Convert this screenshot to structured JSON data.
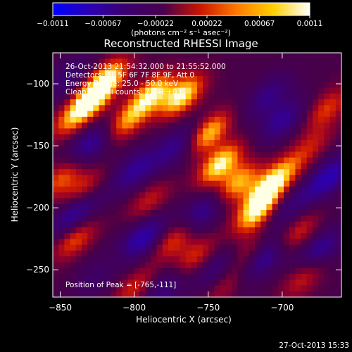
{
  "chart_data": {
    "type": "heatmap",
    "title": "Reconstructed RHESSI Image",
    "xlabel": "Heliocentric X (arcsec)",
    "ylabel": "Heliocentric Y (arcsec)",
    "xlim": [
      -855,
      -660
    ],
    "ylim": [
      -272,
      -75
    ],
    "x_ticks": [
      -850,
      -800,
      -750,
      -700
    ],
    "y_ticks": [
      -100,
      -150,
      -200,
      -250
    ],
    "x_tick_labels": [
      "−850",
      "−800",
      "−750",
      "−700"
    ],
    "y_tick_labels": [
      "−100",
      "−150",
      "−200",
      "−250"
    ],
    "colorbar": {
      "range": [
        -0.0011,
        0.0011
      ],
      "ticks": [
        -0.0011,
        -0.00067,
        -0.00022,
        0.00022,
        0.00067,
        0.0011
      ],
      "tick_labels": [
        "−0.0011",
        "−0.00067",
        "−0.00022",
        "0.00022",
        "0.00067",
        "0.0011"
      ],
      "unit_label": "(photons cm⁻² s⁻¹ asec⁻²)",
      "colors": [
        "#0000ff",
        "#2b00b4",
        "#3c006e",
        "#480050",
        "#c81400",
        "#ff7800",
        "#ffd000",
        "#ffffff"
      ]
    },
    "annotations": {
      "time_range": "26-Oct-2013 21:54:32.000 to 21:55:52.000",
      "detectors": "Detectors: 3F 5F 6F 7F 8F 9F, Att 0",
      "energy": "Energy Range: 25.0 - 50.0 keV",
      "method": "Clean    Total counts: 7.44E+03",
      "peak": "Position of Peak = [-765,-111]"
    },
    "peak": {
      "x": -765,
      "y": -111
    },
    "blobs": [
      {
        "x": -828,
        "y": -112,
        "a": 1.0
      },
      {
        "x": -818,
        "y": -95,
        "a": 0.8
      },
      {
        "x": -842,
        "y": -128,
        "a": 0.6
      },
      {
        "x": -788,
        "y": -108,
        "a": 0.9
      },
      {
        "x": -768,
        "y": -110,
        "a": 1.0
      },
      {
        "x": -805,
        "y": -130,
        "a": 0.7
      },
      {
        "x": -750,
        "y": -140,
        "a": 0.9
      },
      {
        "x": -742,
        "y": -165,
        "a": 1.0
      },
      {
        "x": -730,
        "y": -180,
        "a": 0.8
      },
      {
        "x": -718,
        "y": -205,
        "a": 0.8
      },
      {
        "x": -712,
        "y": -188,
        "a": 0.9
      },
      {
        "x": -700,
        "y": -172,
        "a": 0.6
      },
      {
        "x": -690,
        "y": -220,
        "a": 0.5
      },
      {
        "x": -848,
        "y": -175,
        "a": 0.6
      },
      {
        "x": -835,
        "y": -185,
        "a": 0.5
      },
      {
        "x": -840,
        "y": -225,
        "a": 0.6
      },
      {
        "x": -815,
        "y": -245,
        "a": 0.5
      },
      {
        "x": -772,
        "y": -225,
        "a": 0.6
      },
      {
        "x": -760,
        "y": -240,
        "a": 0.5
      },
      {
        "x": -790,
        "y": -195,
        "a": 0.4
      },
      {
        "x": -725,
        "y": -238,
        "a": 0.45
      },
      {
        "x": -685,
        "y": -255,
        "a": 0.5
      },
      {
        "x": -740,
        "y": -262,
        "a": 0.4
      },
      {
        "x": -800,
        "y": -265,
        "a": 0.45
      },
      {
        "x": -670,
        "y": -120,
        "a": 0.5
      },
      {
        "x": -680,
        "y": -150,
        "a": 0.35
      }
    ],
    "lows": [
      {
        "x": -830,
        "y": -150,
        "a": 0.8
      },
      {
        "x": -840,
        "y": -205,
        "a": 0.9
      },
      {
        "x": -820,
        "y": -250,
        "a": 0.8
      },
      {
        "x": -795,
        "y": -225,
        "a": 0.9
      },
      {
        "x": -800,
        "y": -170,
        "a": 0.7
      },
      {
        "x": -770,
        "y": -150,
        "a": 0.7
      },
      {
        "x": -755,
        "y": -205,
        "a": 0.8
      },
      {
        "x": -742,
        "y": -250,
        "a": 0.7
      },
      {
        "x": -712,
        "y": -240,
        "a": 0.8
      },
      {
        "x": -700,
        "y": -130,
        "a": 0.7
      },
      {
        "x": -668,
        "y": -175,
        "a": 0.9
      },
      {
        "x": -675,
        "y": -235,
        "a": 0.8
      },
      {
        "x": -710,
        "y": -110,
        "a": 0.6
      },
      {
        "x": -845,
        "y": -95,
        "a": 0.5
      },
      {
        "x": -780,
        "y": -265,
        "a": 0.6
      },
      {
        "x": -695,
        "y": -200,
        "a": 0.5
      }
    ]
  },
  "footer": {
    "timestamp": "27-Oct-2013 15:33"
  }
}
